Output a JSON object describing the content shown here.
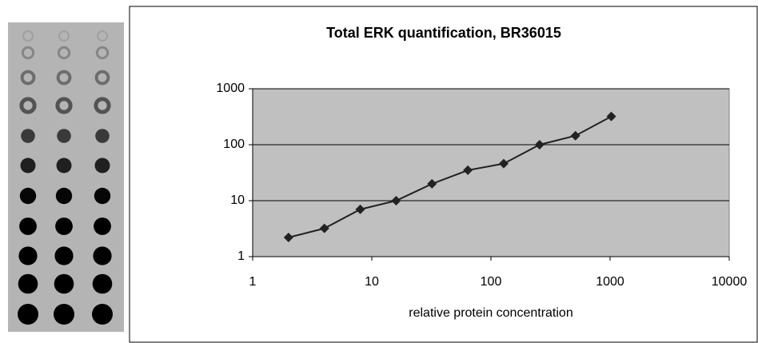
{
  "chart_data": {
    "type": "line",
    "title": "Total ERK quantification, BR36015",
    "x_label": "relative protein concentration",
    "x": [
      2,
      4,
      8,
      16,
      32,
      64,
      128,
      256,
      512,
      1024
    ],
    "values": [
      2.2,
      3.2,
      7,
      10,
      20,
      35,
      46,
      100,
      145,
      320
    ],
    "color": "#222222",
    "xlim": [
      1,
      10000
    ],
    "ylim": [
      1,
      1000
    ],
    "xticks": [
      1,
      10,
      100,
      1000,
      10000
    ],
    "yticks": [
      1,
      10,
      100,
      1000
    ],
    "xlog": true,
    "ylog": true,
    "grid": true
  }
}
